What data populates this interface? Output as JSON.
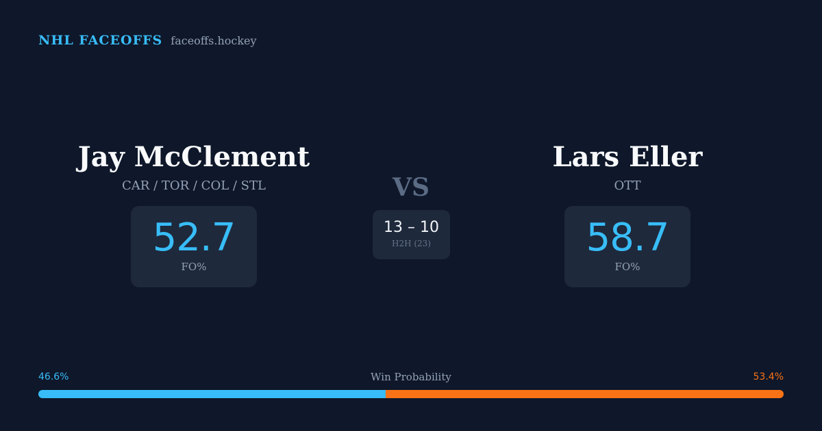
{
  "brand": {
    "name": "NHL FACEOFFS",
    "url": "faceoffs.hockey"
  },
  "players": [
    {
      "name": "Jay McClement",
      "teams": "CAR / TOR / COL / STL",
      "faceoff_pct": "52.7",
      "faceoff_label": "FO%"
    },
    {
      "name": "Lars Eller",
      "teams": "OTT",
      "faceoff_pct": "58.7",
      "faceoff_label": "FO%"
    }
  ],
  "versus": {
    "label": "VS",
    "h2h_score": "13 – 10",
    "h2h_label": "H2H (23)"
  },
  "win_probability": {
    "title": "Win Probability",
    "left_label": "46.6%",
    "right_label": "53.4%",
    "left_value": 46.6,
    "right_value": 53.4,
    "left_color": "#38bdf8",
    "right_color": "#f97316"
  }
}
